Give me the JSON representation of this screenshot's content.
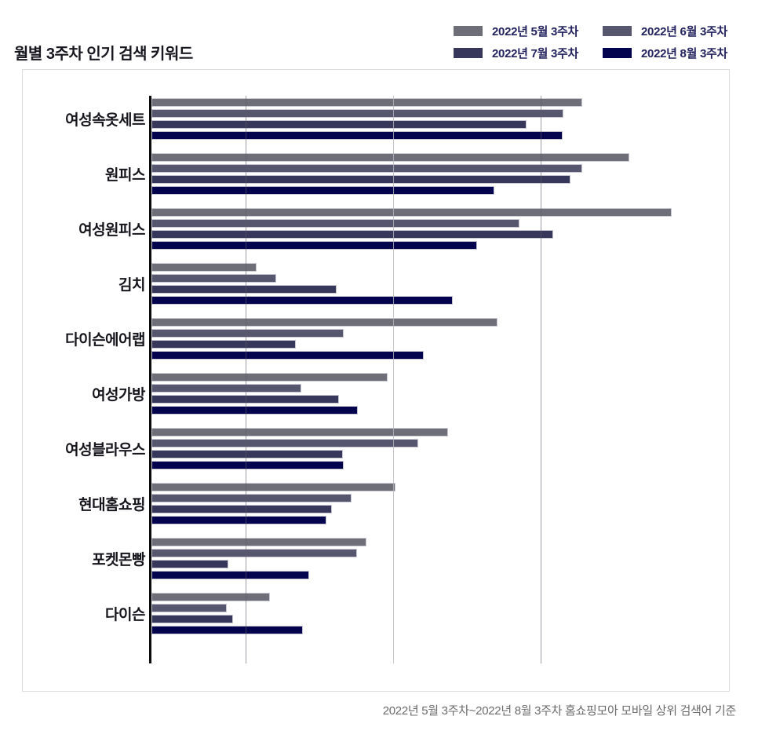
{
  "title": "월별 3주차 인기 검색 키워드",
  "legend": {
    "items": [
      {
        "label": "2022년 5월 3주차",
        "color": "#6e6e78"
      },
      {
        "label": "2022년 6월 3주차",
        "color": "#56566f"
      },
      {
        "label": "2022년 7월 3주차",
        "color": "#37375c"
      },
      {
        "label": "2022년 8월 3주차",
        "color": "#04044e"
      }
    ]
  },
  "footer": {
    "note": "2022년 5월 3주차~2022년 8월 3주차 홈쇼핑모아 모바일 상위 검색어 기준"
  },
  "chart_data": {
    "type": "bar",
    "orientation": "horizontal",
    "title": "월별 3주차 인기 검색 키워드",
    "xlabel": "",
    "ylabel": "",
    "value_axis_labels_visible": false,
    "legend_position": "top-right",
    "categories": [
      "여성속옷세트",
      "원피스",
      "여성원피스",
      "김치",
      "다이슨에어랩",
      "여성가방",
      "여성블라우스",
      "현대홈쇼핑",
      "포켓몬빵",
      "다이슨"
    ],
    "series": [
      {
        "name": "2022년 5월 3주차",
        "color": "#6e6e78",
        "values_pct": [
          74.5,
          82.6,
          90.0,
          18.2,
          59.8,
          40.8,
          51.3,
          42.2,
          37.2,
          20.5
        ]
      },
      {
        "name": "2022년 6월 3주차",
        "color": "#56566f",
        "values_pct": [
          71.2,
          74.5,
          63.6,
          21.6,
          33.2,
          25.9,
          46.1,
          34.6,
          35.5,
          13.0
        ]
      },
      {
        "name": "2022년 7월 3주차",
        "color": "#37375c",
        "values_pct": [
          64.9,
          72.5,
          69.5,
          32.0,
          25.0,
          32.4,
          33.1,
          31.2,
          13.3,
          14.1
        ]
      },
      {
        "name": "2022년 8월 3주차",
        "color": "#04044e",
        "values_pct": [
          71.1,
          59.3,
          56.3,
          52.1,
          47.1,
          35.7,
          33.2,
          30.3,
          27.3,
          26.2
        ]
      }
    ],
    "gridlines": [
      {
        "pct": 16.3,
        "color": "rgba(92,92,102,0.6)"
      },
      {
        "pct": 41.8,
        "color": "rgba(182,182,190,0.8)"
      },
      {
        "pct": 67.3,
        "color": "rgba(92,92,102,0.6)"
      }
    ],
    "unit_note": "values_pct are bar lengths as percent of plot width; no numeric axis labels are shown in the chart"
  }
}
